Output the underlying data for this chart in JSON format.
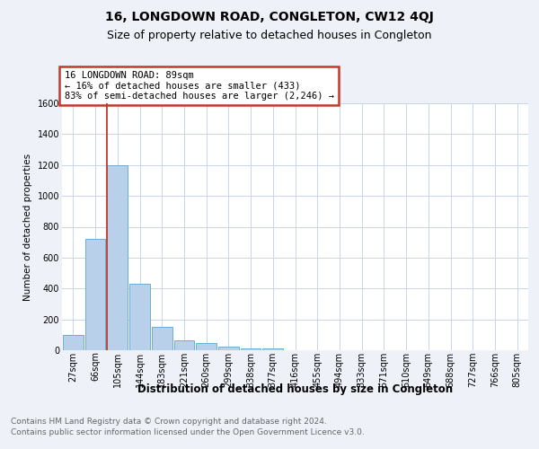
{
  "title": "16, LONGDOWN ROAD, CONGLETON, CW12 4QJ",
  "subtitle": "Size of property relative to detached houses in Congleton",
  "xlabel": "Distribution of detached houses by size in Congleton",
  "ylabel": "Number of detached properties",
  "footnote1": "Contains HM Land Registry data © Crown copyright and database right 2024.",
  "footnote2": "Contains public sector information licensed under the Open Government Licence v3.0.",
  "categories": [
    "27sqm",
    "66sqm",
    "105sqm",
    "144sqm",
    "183sqm",
    "221sqm",
    "260sqm",
    "299sqm",
    "338sqm",
    "377sqm",
    "416sqm",
    "455sqm",
    "494sqm",
    "533sqm",
    "571sqm",
    "610sqm",
    "649sqm",
    "688sqm",
    "727sqm",
    "766sqm",
    "805sqm"
  ],
  "values": [
    100,
    720,
    1200,
    430,
    150,
    65,
    45,
    25,
    10,
    10,
    0,
    0,
    0,
    0,
    0,
    0,
    0,
    0,
    0,
    0,
    0
  ],
  "bar_color": "#b8d0ea",
  "bar_edge_color": "#6baed6",
  "property_line_color": "#c0392b",
  "annotation_text_line1": "16 LONGDOWN ROAD: 89sqm",
  "annotation_text_line2": "← 16% of detached houses are smaller (433)",
  "annotation_text_line3": "83% of semi-detached houses are larger (2,246) →",
  "annotation_box_color": "#c0392b",
  "ylim": [
    0,
    1600
  ],
  "yticks": [
    0,
    200,
    400,
    600,
    800,
    1000,
    1200,
    1400,
    1600
  ],
  "bg_color": "#eef2f8",
  "plot_bg_color": "#ffffff",
  "grid_color": "#c8d4e8",
  "title_fontsize": 10,
  "subtitle_fontsize": 9,
  "xlabel_fontsize": 8.5,
  "ylabel_fontsize": 7.5,
  "annotation_fontsize": 7.5,
  "tick_fontsize": 7,
  "footnote_fontsize": 6.5
}
